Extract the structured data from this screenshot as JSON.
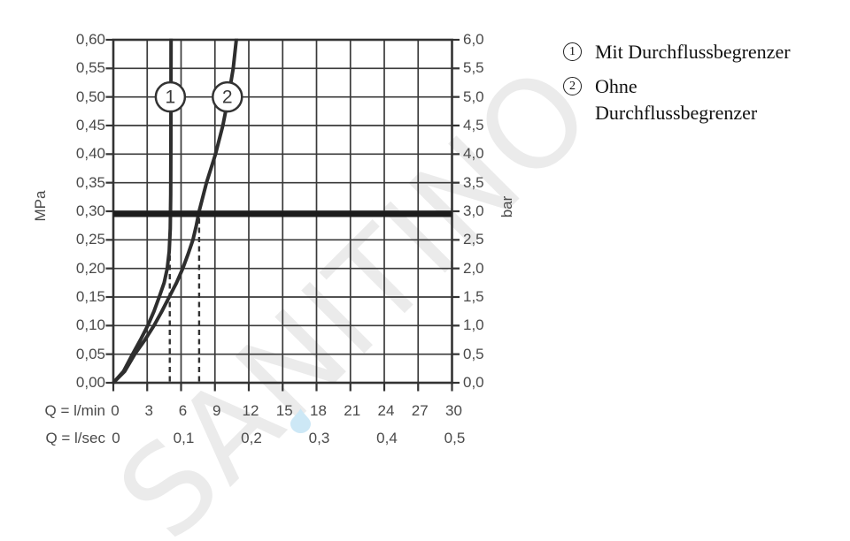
{
  "watermark": {
    "text": "SANITINO",
    "text_color": "#ebebeb",
    "droplet_color": "#cde8f6"
  },
  "legend": {
    "items": [
      {
        "marker": "1",
        "lines": [
          "Mit Durchflussbegrenzer",
          ""
        ]
      },
      {
        "marker": "2",
        "lines": [
          "Ohne",
          "Durchflussbegrenzer"
        ]
      }
    ]
  },
  "chart_data": {
    "type": "line",
    "title": "",
    "grid": true,
    "x_lmin": {
      "axis_label": "Q = l/min",
      "min": 0,
      "max": 30,
      "step": 3,
      "tick_labels": [
        "0",
        "3",
        "6",
        "9",
        "12",
        "15",
        "18",
        "21",
        "24",
        "27",
        "30"
      ]
    },
    "x_lsec": {
      "axis_label": "Q = l/sec",
      "ticks": [
        {
          "label": "0",
          "q_lmin": 0
        },
        {
          "label": "0,1",
          "q_lmin": 6
        },
        {
          "label": "0,2",
          "q_lmin": 12
        },
        {
          "label": "0,3",
          "q_lmin": 18
        },
        {
          "label": "0,4",
          "q_lmin": 24
        },
        {
          "label": "0,5",
          "q_lmin": 30
        }
      ]
    },
    "y_left": {
      "unit": "MPa",
      "min": 0,
      "max": 0.6,
      "step": 0.05,
      "tick_labels": [
        "0,60",
        "0,55",
        "0,50",
        "0,45",
        "0,40",
        "0,35",
        "0,30",
        "0,25",
        "0,20",
        "0,15",
        "0,10",
        "0,05",
        "0,00"
      ]
    },
    "y_right": {
      "unit": "bar",
      "min": 0,
      "max": 6,
      "step": 0.5,
      "tick_labels": [
        "6,0",
        "5,5",
        "5,0",
        "4,5",
        "4,0",
        "3,5",
        "3,0",
        "2,5",
        "2,0",
        "1,5",
        "1,0",
        "0,5",
        "0,0"
      ]
    },
    "reference_line": {
      "mpa": 0.3,
      "bar": 3.0
    },
    "dashed_guides_q_lmin": [
      5.0,
      7.6
    ],
    "markers": [
      {
        "label": "1",
        "q_lmin": 5.05,
        "mpa": 0.5
      },
      {
        "label": "2",
        "q_lmin": 10.1,
        "mpa": 0.5
      }
    ],
    "series": [
      {
        "marker": "1",
        "name": "Mit Durchflussbegrenzer",
        "flow_at_3bar_lmin": 5.0,
        "points_q_mpa": [
          [
            0,
            0
          ],
          [
            0.9,
            0.02
          ],
          [
            1.7,
            0.05
          ],
          [
            2.4,
            0.075
          ],
          [
            3.05,
            0.1
          ],
          [
            3.6,
            0.125
          ],
          [
            4.06,
            0.15
          ],
          [
            4.5,
            0.175
          ],
          [
            4.78,
            0.2
          ],
          [
            4.95,
            0.23
          ],
          [
            5.04,
            0.27
          ],
          [
            5.08,
            0.33
          ],
          [
            5.1,
            0.42
          ],
          [
            5.11,
            0.62
          ]
        ]
      },
      {
        "marker": "2",
        "name": "Ohne Durchflussbegrenzer",
        "flow_at_3bar_lmin": 7.6,
        "points_q_mpa": [
          [
            0,
            0
          ],
          [
            1.0,
            0.02
          ],
          [
            1.9,
            0.05
          ],
          [
            2.8,
            0.075
          ],
          [
            3.6,
            0.1
          ],
          [
            4.3,
            0.125
          ],
          [
            4.95,
            0.15
          ],
          [
            5.6,
            0.175
          ],
          [
            6.15,
            0.2
          ],
          [
            6.62,
            0.225
          ],
          [
            7.05,
            0.25
          ],
          [
            7.35,
            0.275
          ],
          [
            7.6,
            0.3
          ],
          [
            8.25,
            0.35
          ],
          [
            9.05,
            0.4
          ],
          [
            9.7,
            0.45
          ],
          [
            10.2,
            0.5
          ],
          [
            10.62,
            0.55
          ],
          [
            11.0,
            0.62
          ]
        ]
      }
    ]
  }
}
